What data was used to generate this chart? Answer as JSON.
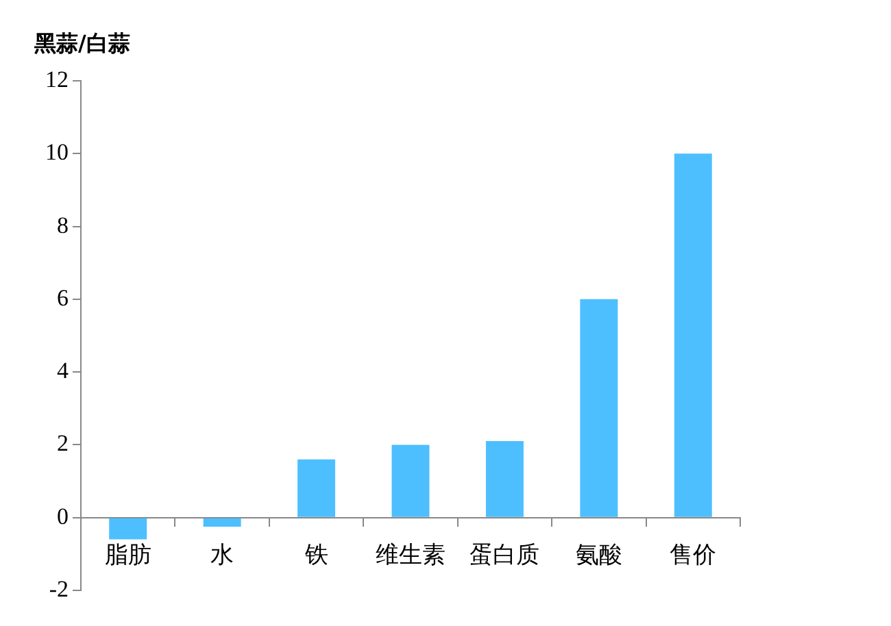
{
  "chart_data": {
    "type": "bar",
    "ylabel": "黑蒜/白蒜",
    "categories": [
      "脂肪",
      "水",
      "铁",
      "维生素",
      "蛋白质",
      "氨酸",
      "售价"
    ],
    "values": [
      -0.6,
      -0.25,
      1.6,
      2,
      2.1,
      6,
      10
    ],
    "color": "#4dbfff",
    "ylim": [
      -2,
      12
    ],
    "yticks": [
      -2,
      0,
      2,
      4,
      6,
      8,
      10,
      12
    ],
    "grid": false,
    "legend": false
  }
}
